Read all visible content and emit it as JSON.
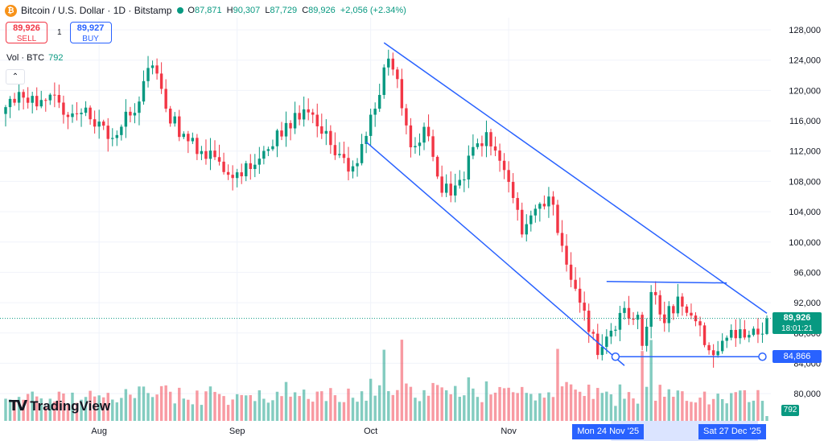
{
  "header": {
    "symbol": "Bitcoin / U.S. Dollar · 1D · Bitstamp",
    "btc_glyph": "₿",
    "o_label": "O",
    "o_value": "87,871",
    "h_label": "H",
    "h_value": "90,307",
    "l_label": "L",
    "l_value": "87,729",
    "c_label": "C",
    "c_value": "89,926",
    "change": "+2,056 (+2.34%)"
  },
  "trade": {
    "sell_price": "89,926",
    "sell_label": "SELL",
    "spread": "1",
    "buy_price": "89,927",
    "buy_label": "BUY"
  },
  "volume_legend": {
    "label": "Vol · BTC",
    "value": "792"
  },
  "logo": {
    "mark": "TV",
    "text": "TradingView"
  },
  "tags": {
    "last_price": "89,926",
    "countdown": "18:01:21",
    "line_price": "84,866",
    "volume": "792",
    "date_left": "Mon 24 Nov '25",
    "date_right": "Sat 27 Dec '25"
  },
  "colors": {
    "up": "#089981",
    "down": "#f23645",
    "drawing": "#2962ff",
    "grid": "#f0f3fa",
    "text": "#131722"
  },
  "icons": {
    "logo": "btc-icon",
    "live": "live-dot-icon",
    "collapse": "chevron-up-icon"
  },
  "chart_data": {
    "type": "candlestick",
    "y_ticks": [
      "128,000",
      "124,000",
      "120,000",
      "116,000",
      "112,000",
      "108,000",
      "104,000",
      "100,000",
      "96,000",
      "92,000",
      "88,000",
      "84,000",
      "80,000"
    ],
    "y_tick_values": [
      128000,
      124000,
      120000,
      116000,
      112000,
      108000,
      104000,
      100000,
      96000,
      92000,
      88000,
      84000,
      80000
    ],
    "ylim": [
      76400,
      129600
    ],
    "x_ticks": [
      "Aug",
      "Sep",
      "Oct",
      "Nov"
    ],
    "x_tick_dates": [
      "2025-08-01",
      "2025-09-01",
      "2025-10-01",
      "2025-11-01"
    ],
    "x_range": [
      "2025-07-11",
      "2025-12-29"
    ],
    "anchors": [
      {
        "date": "2025-07-11",
        "close": 117800
      },
      {
        "date": "2025-07-14",
        "close": 119800
      },
      {
        "date": "2025-07-18",
        "close": 117900
      },
      {
        "date": "2025-07-23",
        "close": 118400
      },
      {
        "date": "2025-07-30",
        "close": 116200
      },
      {
        "date": "2025-08-03",
        "close": 113600
      },
      {
        "date": "2025-08-08",
        "close": 116700
      },
      {
        "date": "2025-08-13",
        "close": 123300
      },
      {
        "date": "2025-08-16",
        "close": 117600
      },
      {
        "date": "2025-08-21",
        "close": 113300
      },
      {
        "date": "2025-08-27",
        "close": 111200
      },
      {
        "date": "2025-09-01",
        "close": 109200
      },
      {
        "date": "2025-09-06",
        "close": 111000
      },
      {
        "date": "2025-09-12",
        "close": 115700
      },
      {
        "date": "2025-09-18",
        "close": 116800
      },
      {
        "date": "2025-09-22",
        "close": 112800
      },
      {
        "date": "2025-09-26",
        "close": 109300
      },
      {
        "date": "2025-09-30",
        "close": 114000
      },
      {
        "date": "2025-10-05",
        "close": 124200
      },
      {
        "date": "2025-10-07",
        "close": 121500
      },
      {
        "date": "2025-10-10",
        "close": 112500
      },
      {
        "date": "2025-10-13",
        "close": 115200
      },
      {
        "date": "2025-10-17",
        "close": 106500
      },
      {
        "date": "2025-10-21",
        "close": 108200
      },
      {
        "date": "2025-10-27",
        "close": 114500
      },
      {
        "date": "2025-10-31",
        "close": 109500
      },
      {
        "date": "2025-11-04",
        "close": 101000
      },
      {
        "date": "2025-11-10",
        "close": 106000
      },
      {
        "date": "2025-11-13",
        "close": 99500
      },
      {
        "date": "2025-11-17",
        "close": 92000
      },
      {
        "date": "2025-11-21",
        "close": 85100
      },
      {
        "date": "2025-11-24",
        "close": 88300
      },
      {
        "date": "2025-11-27",
        "close": 91300
      },
      {
        "date": "2025-11-30",
        "close": 90400
      },
      {
        "date": "2025-12-01",
        "close": 86300
      },
      {
        "date": "2025-12-03",
        "close": 93400
      },
      {
        "date": "2025-12-06",
        "close": 89300
      },
      {
        "date": "2025-12-09",
        "close": 92800
      },
      {
        "date": "2025-12-12",
        "close": 90300
      },
      {
        "date": "2025-12-15",
        "close": 86400
      },
      {
        "date": "2025-12-18",
        "close": 85600
      },
      {
        "date": "2025-12-21",
        "close": 88400
      },
      {
        "date": "2025-12-24",
        "close": 87400
      },
      {
        "date": "2025-12-27",
        "close": 87800
      },
      {
        "date": "2025-12-28",
        "close": 87900
      },
      {
        "date": "2025-12-29",
        "close": 89926
      }
    ],
    "last_candle": {
      "open": 87871,
      "high": 90307,
      "low": 87729,
      "close": 89926
    },
    "trendlines": [
      {
        "from": {
          "date": "2025-10-04",
          "price": 126300
        },
        "to": {
          "date": "2025-12-29",
          "price": 90600
        }
      },
      {
        "from": {
          "date": "2025-09-30",
          "price": 113200
        },
        "to": {
          "date": "2025-11-27",
          "price": 83700
        }
      },
      {
        "from": {
          "date": "2025-11-23",
          "price": 94800
        },
        "to": {
          "date": "2025-12-20",
          "price": 94600
        }
      },
      {
        "from": {
          "date": "2025-11-25",
          "price": 84866
        },
        "to": {
          "date": "2025-12-28",
          "price": 84866
        }
      }
    ],
    "volume_last": 792
  }
}
